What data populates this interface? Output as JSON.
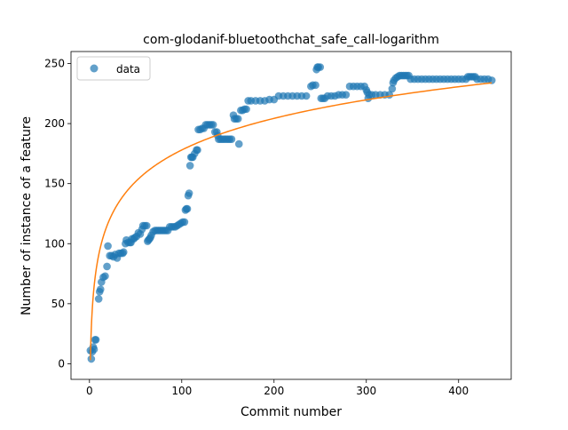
{
  "chart_data": {
    "type": "scatter",
    "title": "com-glodanif-bluetoothchat_safe_call-logarithm",
    "xlabel": "Commit number",
    "ylabel": "Number of instance of a feature",
    "xlim": [
      -20,
      457
    ],
    "ylim": [
      -13,
      260
    ],
    "x_ticks": [
      0,
      100,
      200,
      300,
      400
    ],
    "y_ticks": [
      0,
      50,
      100,
      150,
      200,
      250
    ],
    "grid": false,
    "legend": {
      "position": "upper-left",
      "entries": [
        "data"
      ]
    },
    "series": [
      {
        "name": "data",
        "kind": "scatter",
        "color": "#1f77b4",
        "points": [
          [
            1,
            11
          ],
          [
            2,
            4
          ],
          [
            3,
            10
          ],
          [
            4,
            14
          ],
          [
            5,
            12
          ],
          [
            6,
            20
          ],
          [
            7,
            20
          ],
          [
            10,
            54
          ],
          [
            11,
            60
          ],
          [
            12,
            62
          ],
          [
            13,
            68
          ],
          [
            15,
            72
          ],
          [
            17,
            73
          ],
          [
            19,
            81
          ],
          [
            20,
            98
          ],
          [
            22,
            90
          ],
          [
            24,
            90
          ],
          [
            26,
            89
          ],
          [
            28,
            91
          ],
          [
            30,
            88
          ],
          [
            32,
            92
          ],
          [
            34,
            92
          ],
          [
            36,
            92
          ],
          [
            37,
            93
          ],
          [
            39,
            100
          ],
          [
            40,
            103
          ],
          [
            42,
            101
          ],
          [
            44,
            101
          ],
          [
            45,
            101
          ],
          [
            46,
            104
          ],
          [
            48,
            104
          ],
          [
            49,
            105
          ],
          [
            51,
            106
          ],
          [
            53,
            109
          ],
          [
            55,
            108
          ],
          [
            57,
            112
          ],
          [
            58,
            115
          ],
          [
            60,
            115
          ],
          [
            62,
            115
          ],
          [
            63,
            102
          ],
          [
            64,
            103
          ],
          [
            65,
            104
          ],
          [
            66,
            105
          ],
          [
            67,
            107
          ],
          [
            69,
            110
          ],
          [
            71,
            111
          ],
          [
            73,
            111
          ],
          [
            75,
            111
          ],
          [
            77,
            111
          ],
          [
            79,
            111
          ],
          [
            81,
            111
          ],
          [
            83,
            111
          ],
          [
            85,
            111
          ],
          [
            87,
            114
          ],
          [
            89,
            114
          ],
          [
            91,
            114
          ],
          [
            93,
            114
          ],
          [
            95,
            115
          ],
          [
            97,
            116
          ],
          [
            99,
            117
          ],
          [
            101,
            118
          ],
          [
            103,
            118
          ],
          [
            104,
            128
          ],
          [
            105,
            129
          ],
          [
            106,
            129
          ],
          [
            107,
            140
          ],
          [
            108,
            142
          ],
          [
            109,
            165
          ],
          [
            110,
            172
          ],
          [
            111,
            172
          ],
          [
            112,
            172
          ],
          [
            114,
            175
          ],
          [
            116,
            178
          ],
          [
            117,
            178
          ],
          [
            118,
            195
          ],
          [
            120,
            195
          ],
          [
            122,
            196
          ],
          [
            124,
            196
          ],
          [
            126,
            199
          ],
          [
            128,
            199
          ],
          [
            130,
            199
          ],
          [
            132,
            199
          ],
          [
            134,
            199
          ],
          [
            136,
            193
          ],
          [
            138,
            193
          ],
          [
            139,
            190
          ],
          [
            140,
            187
          ],
          [
            142,
            187
          ],
          [
            144,
            187
          ],
          [
            146,
            187
          ],
          [
            148,
            187
          ],
          [
            150,
            187
          ],
          [
            152,
            187
          ],
          [
            154,
            187
          ],
          [
            156,
            207
          ],
          [
            157,
            204
          ],
          [
            159,
            204
          ],
          [
            161,
            204
          ],
          [
            162,
            183
          ],
          [
            164,
            211
          ],
          [
            166,
            211
          ],
          [
            168,
            212
          ],
          [
            170,
            212
          ],
          [
            172,
            219
          ],
          [
            175,
            219
          ],
          [
            180,
            219
          ],
          [
            185,
            219
          ],
          [
            190,
            219
          ],
          [
            195,
            220
          ],
          [
            200,
            220
          ],
          [
            205,
            223
          ],
          [
            210,
            223
          ],
          [
            215,
            223
          ],
          [
            220,
            223
          ],
          [
            225,
            223
          ],
          [
            230,
            223
          ],
          [
            235,
            223
          ],
          [
            240,
            231
          ],
          [
            242,
            232
          ],
          [
            245,
            232
          ],
          [
            246,
            245
          ],
          [
            247,
            247
          ],
          [
            248,
            247
          ],
          [
            250,
            247
          ],
          [
            251,
            221
          ],
          [
            253,
            221
          ],
          [
            255,
            221
          ],
          [
            258,
            223
          ],
          [
            262,
            223
          ],
          [
            266,
            223
          ],
          [
            270,
            224
          ],
          [
            274,
            224
          ],
          [
            278,
            224
          ],
          [
            282,
            231
          ],
          [
            286,
            231
          ],
          [
            290,
            231
          ],
          [
            294,
            231
          ],
          [
            298,
            231
          ],
          [
            300,
            228
          ],
          [
            301,
            226
          ],
          [
            302,
            221
          ],
          [
            303,
            224
          ],
          [
            306,
            224
          ],
          [
            310,
            224
          ],
          [
            315,
            224
          ],
          [
            320,
            224
          ],
          [
            325,
            224
          ],
          [
            328,
            229
          ],
          [
            329,
            234
          ],
          [
            330,
            236
          ],
          [
            332,
            238
          ],
          [
            334,
            239
          ],
          [
            336,
            240
          ],
          [
            338,
            240
          ],
          [
            340,
            240
          ],
          [
            342,
            240
          ],
          [
            344,
            240
          ],
          [
            346,
            240
          ],
          [
            348,
            237
          ],
          [
            352,
            237
          ],
          [
            356,
            237
          ],
          [
            360,
            237
          ],
          [
            364,
            237
          ],
          [
            368,
            237
          ],
          [
            372,
            237
          ],
          [
            376,
            237
          ],
          [
            380,
            237
          ],
          [
            384,
            237
          ],
          [
            388,
            237
          ],
          [
            392,
            237
          ],
          [
            396,
            237
          ],
          [
            400,
            237
          ],
          [
            404,
            237
          ],
          [
            408,
            237
          ],
          [
            410,
            239
          ],
          [
            412,
            239
          ],
          [
            414,
            239
          ],
          [
            416,
            239
          ],
          [
            418,
            239
          ],
          [
            420,
            237
          ],
          [
            424,
            237
          ],
          [
            428,
            237
          ],
          [
            432,
            237
          ],
          [
            436,
            236
          ]
        ]
      },
      {
        "kind": "line",
        "color": "#ff7f0e",
        "fit": "logarithmic",
        "equation": {
          "form": "y = a + b*ln(x)",
          "a": 3,
          "b": 38
        },
        "x_range": [
          1,
          436
        ]
      }
    ]
  }
}
